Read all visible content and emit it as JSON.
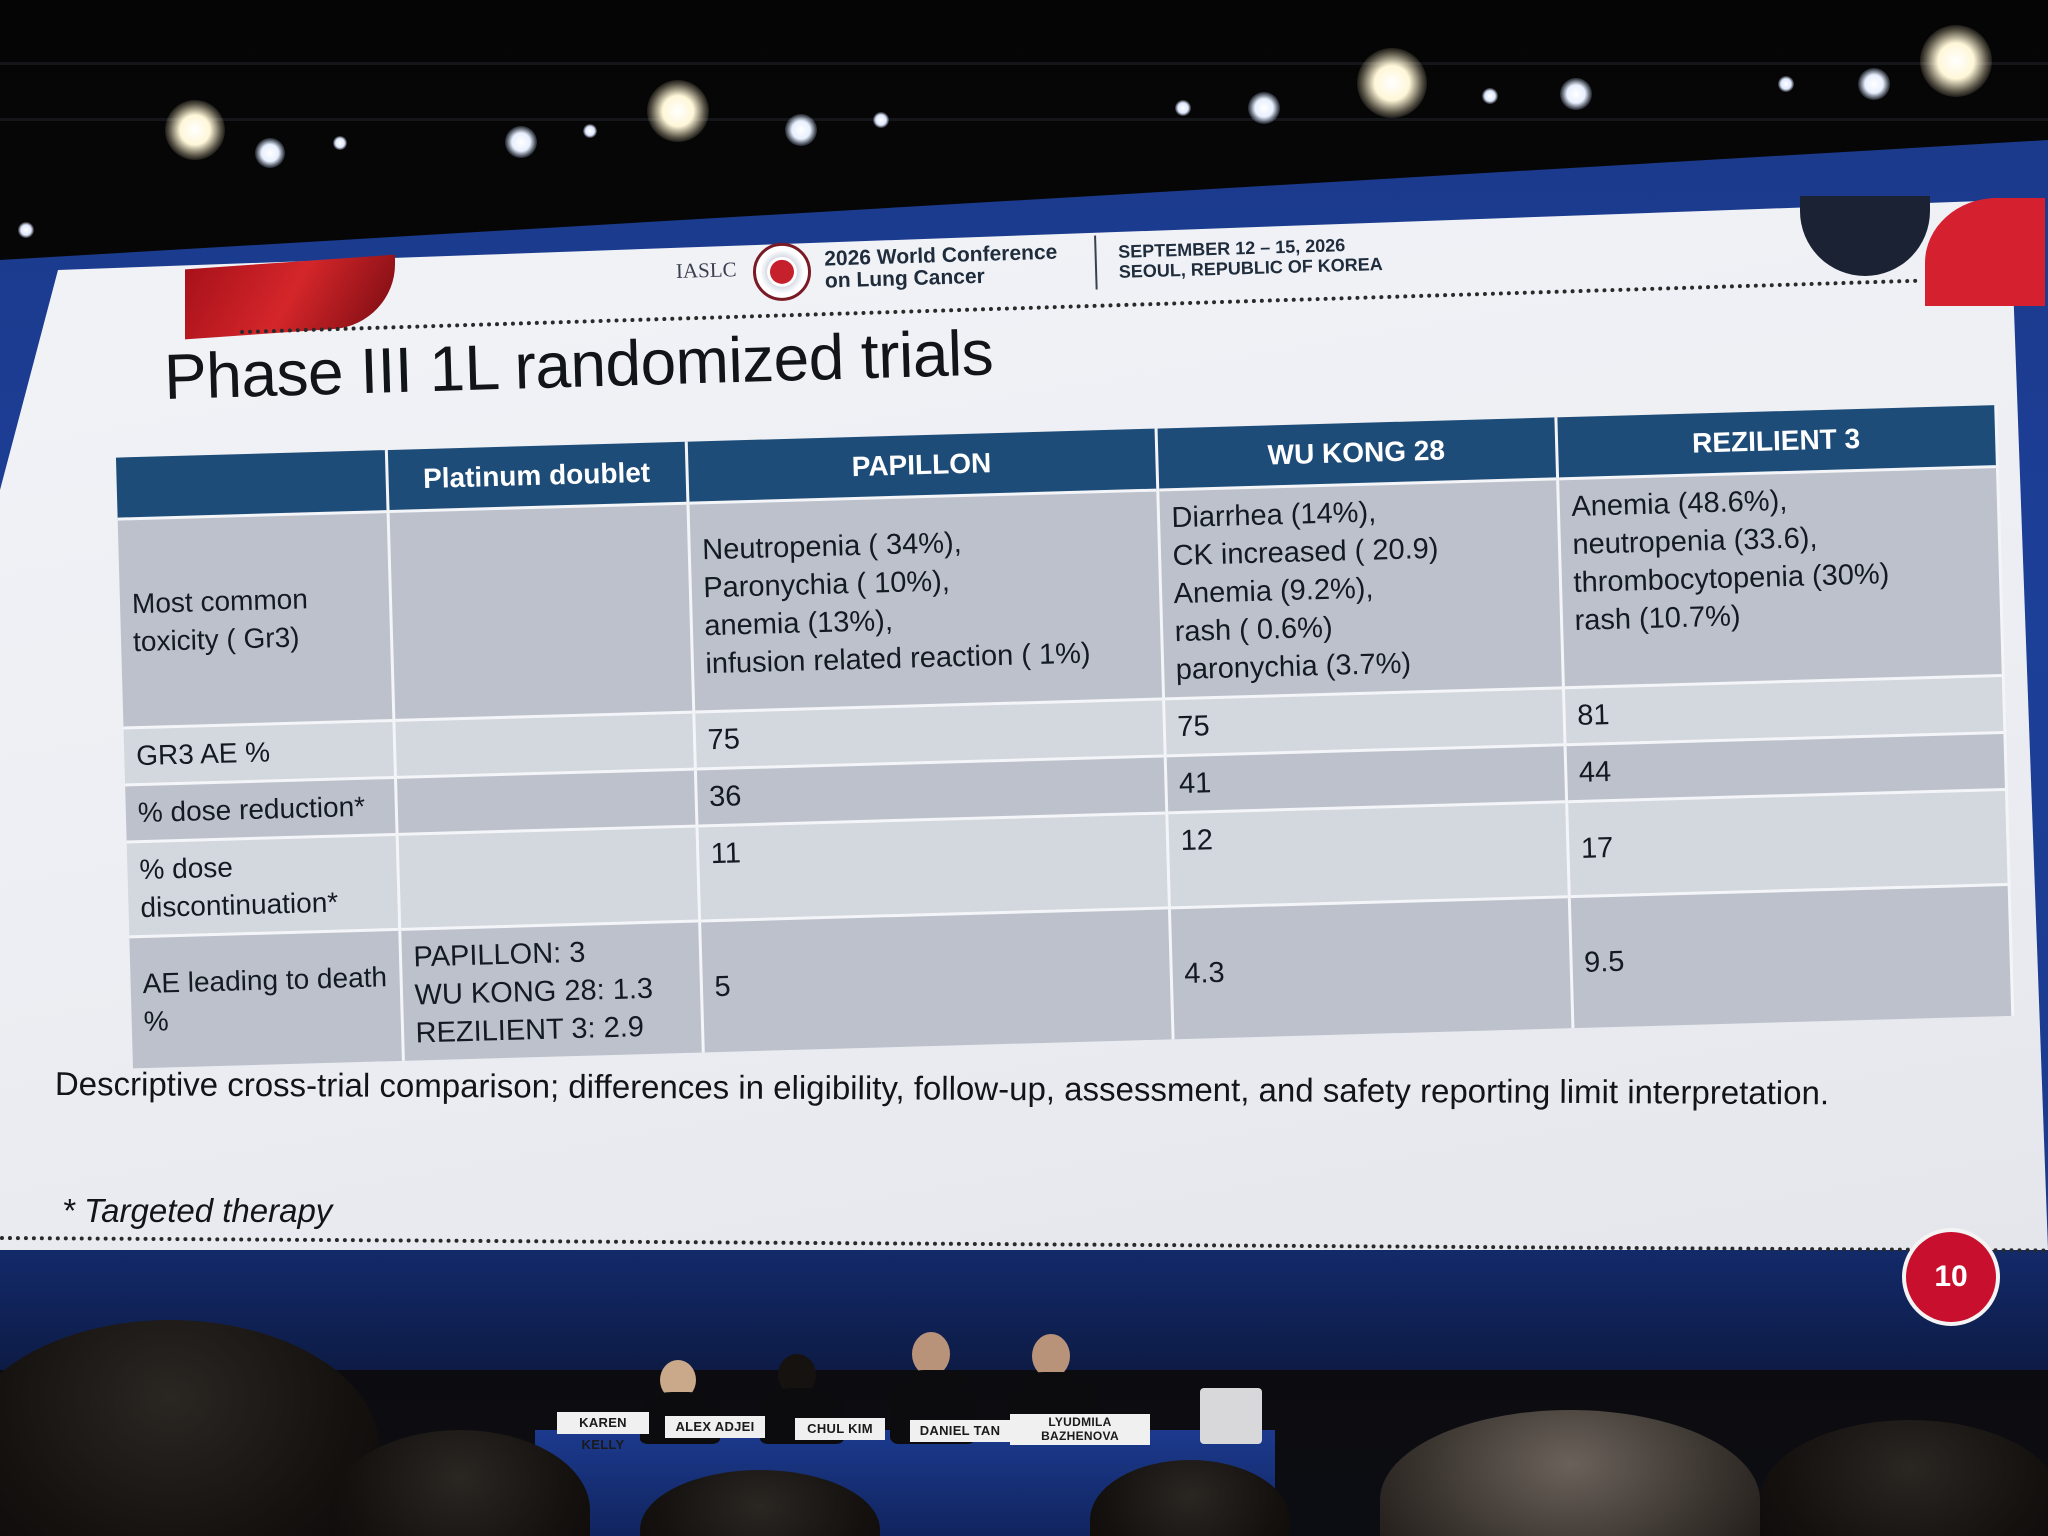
{
  "header": {
    "org": "IASLC",
    "conference_line1": "2026 World Conference",
    "conference_line2": "on Lung Cancer",
    "date_line1": "SEPTEMBER 12 – 15, 2026",
    "date_line2": "SEOUL, REPUBLIC OF KOREA"
  },
  "slide": {
    "title": "Phase III 1L randomized trials",
    "note": "Descriptive cross-trial comparison; differences in eligibility, follow-up, assessment, and safety reporting limit interpretation.",
    "footnote": "* Targeted therapy",
    "page_number": "10"
  },
  "table": {
    "headers": [
      "",
      "Platinum doublet",
      "PAPILLON",
      "WU KONG 28",
      "REZILIENT 3"
    ],
    "rows": [
      {
        "label": "Most common toxicity ( Gr3)",
        "platinum": "",
        "papillon": [
          "Neutropenia ( 34%),",
          "Paronychia ( 10%),",
          "anemia (13%),",
          "infusion related reaction ( 1%)"
        ],
        "wukong": [
          "Diarrhea (14%),",
          "CK increased ( 20.9)",
          "Anemia (9.2%),",
          "rash ( 0.6%)",
          "paronychia (3.7%)"
        ],
        "rezilient": [
          "Anemia (48.6%),",
          "neutropenia (33.6),",
          "thrombocytopenia (30%)",
          "rash (10.7%)"
        ]
      },
      {
        "label": "GR3 AE %",
        "platinum": "",
        "papillon": "75",
        "wukong": "75",
        "rezilient": "81"
      },
      {
        "label": "% dose reduction*",
        "platinum": "",
        "papillon": "36",
        "wukong": "41",
        "rezilient": "44"
      },
      {
        "label": "% dose discontinuation*",
        "platinum": "",
        "papillon": "11",
        "wukong": "12",
        "rezilient": "17"
      },
      {
        "label": "AE leading to death %",
        "platinum": [
          "PAPILLON: 3",
          "WU KONG 28:  1.3",
          "REZILIENT 3: 2.9"
        ],
        "papillon": "5",
        "wukong": "4.3",
        "rezilient": "9.5"
      }
    ]
  },
  "panel": {
    "nameplates": [
      "KAREN KELLY",
      "ALEX ADJEI",
      "CHUL KIM",
      "DANIEL TAN",
      "LYUDMILA BAZHENOVA"
    ]
  },
  "colors": {
    "table_header": "#1e4c78",
    "row_dark": "#bcc1cb",
    "row_light": "#d3d7de",
    "accent_red": "#c8102e",
    "screen_blue": "#1c3f98"
  }
}
